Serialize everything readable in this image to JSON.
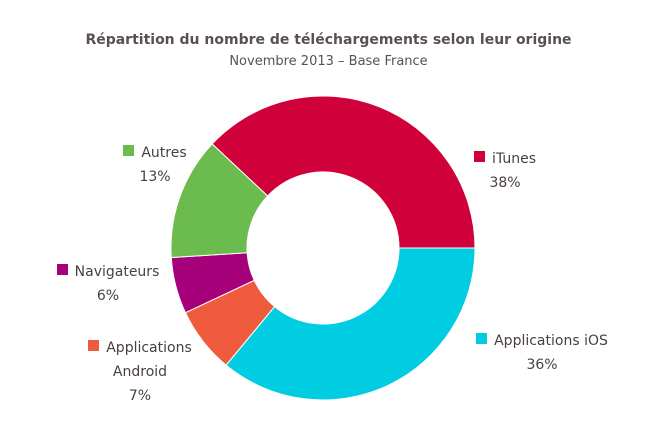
{
  "chart_data": {
    "type": "donut",
    "title": "Répartition du nombre de téléchargements selon leur origine",
    "subtitle": "Novembre 2013 – Base France",
    "categories": [
      "iTunes",
      "Applications iOS",
      "Applications Android",
      "Navigateurs",
      "Autres"
    ],
    "values": [
      38,
      36,
      7,
      6,
      13
    ],
    "value_labels": [
      "38%",
      "36%",
      "7%",
      "6%",
      "13%"
    ],
    "colors": [
      "#d0003a",
      "#00cce2",
      "#ef5b3d",
      "#a6007a",
      "#6cbb4e"
    ]
  }
}
